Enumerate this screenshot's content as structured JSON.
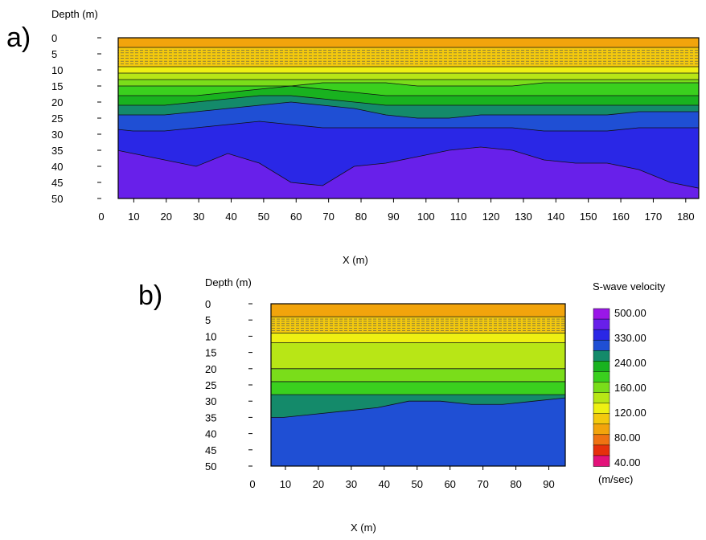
{
  "figure": {
    "panel_a_label": "a)",
    "panel_b_label": "b)"
  },
  "colorbar": {
    "title": "S-wave velocity",
    "unit": "(m/sec)",
    "labels": [
      "500.00",
      "330.00",
      "240.00",
      "160.00",
      "120.00",
      "80.00",
      "40.00"
    ],
    "colors": [
      "#9a17e8",
      "#6820ea",
      "#2a27e6",
      "#1f4fd4",
      "#148a6a",
      "#19b21f",
      "#3ad01e",
      "#7add1a",
      "#b8e616",
      "#eef013",
      "#f3c90e",
      "#f2a40c",
      "#ef7212",
      "#e6300c",
      "#e3127a"
    ]
  },
  "chart_data": [
    {
      "type": "heatmap",
      "panel": "a)",
      "xlabel": "X (m)",
      "ylabel": "Depth (m)",
      "xlim": [
        0,
        185
      ],
      "ylim": [
        0,
        50
      ],
      "x_ticks": [
        "0",
        "10",
        "20",
        "30",
        "40",
        "50",
        "60",
        "70",
        "80",
        "90",
        "100",
        "110",
        "120",
        "130",
        "140",
        "150",
        "160",
        "170",
        "180"
      ],
      "y_ticks": [
        "0",
        "5",
        "10",
        "15",
        "20",
        "25",
        "30",
        "35",
        "40",
        "45",
        "50"
      ],
      "layers": [
        {
          "color": "#f2a40c",
          "velocity": 100,
          "top": [
            0,
            0,
            0,
            0,
            0,
            0,
            0,
            0,
            0,
            0,
            0,
            0,
            0,
            0,
            0,
            0,
            0,
            0,
            0,
            0
          ],
          "bottom": [
            3,
            3,
            3,
            3,
            3,
            3,
            3,
            3,
            3,
            3,
            3,
            3,
            3,
            3,
            3,
            3,
            3,
            3,
            3,
            3
          ]
        },
        {
          "color": "#f3c90e",
          "velocity": 130,
          "top": [
            3,
            3,
            3,
            3,
            3,
            3,
            3,
            3,
            3,
            3,
            3,
            3,
            3,
            3,
            3,
            3,
            3,
            3,
            3,
            3
          ],
          "bottom": [
            9,
            9,
            9,
            9,
            9,
            9,
            9,
            9,
            9,
            9,
            9,
            9,
            9,
            9,
            9,
            9,
            9,
            9,
            9,
            9
          ]
        },
        {
          "color": "#eef013",
          "velocity": 145,
          "top": [
            9,
            9,
            9,
            9,
            9,
            9,
            9,
            9,
            9,
            9,
            9,
            9,
            9,
            9,
            9,
            9,
            9,
            9,
            9,
            9
          ],
          "bottom": [
            11,
            11,
            11,
            11,
            11,
            11,
            11,
            11,
            11,
            11,
            11,
            11,
            11,
            11,
            11,
            11,
            11,
            11,
            11,
            11
          ]
        },
        {
          "color": "#b8e616",
          "velocity": 160,
          "top": [
            11,
            11,
            11,
            11,
            11,
            11,
            11,
            11,
            11,
            11,
            11,
            11,
            11,
            11,
            11,
            11,
            11,
            11,
            11,
            11
          ],
          "bottom": [
            13,
            13,
            13,
            13,
            13,
            13,
            13,
            13,
            13,
            13,
            13,
            13,
            13,
            13,
            13,
            13,
            13,
            13,
            13,
            13
          ]
        },
        {
          "color": "#7add1a",
          "velocity": 180,
          "top": [
            13,
            13,
            13,
            13,
            13,
            13,
            13,
            13,
            13,
            13,
            13,
            13,
            13,
            13,
            13,
            13,
            13,
            13,
            13,
            13
          ],
          "bottom": [
            15,
            15,
            15,
            15,
            15,
            15,
            15,
            14,
            14,
            14,
            15,
            15,
            15,
            15,
            14,
            14,
            14,
            14,
            14,
            14
          ]
        },
        {
          "color": "#3ad01e",
          "velocity": 200,
          "top": [
            15,
            15,
            15,
            15,
            15,
            15,
            15,
            14,
            14,
            14,
            15,
            15,
            15,
            15,
            14,
            14,
            14,
            14,
            14,
            14
          ],
          "bottom": [
            18,
            18,
            18,
            18,
            17,
            16,
            15,
            16,
            17,
            18,
            18,
            18,
            18,
            18,
            18,
            18,
            18,
            18,
            18,
            18
          ]
        },
        {
          "color": "#19b21f",
          "velocity": 220,
          "top": [
            18,
            18,
            18,
            18,
            17,
            16,
            15,
            16,
            17,
            18,
            18,
            18,
            18,
            18,
            18,
            18,
            18,
            18,
            18,
            18
          ],
          "bottom": [
            21,
            21,
            21,
            20,
            19,
            18,
            18,
            19,
            20,
            21,
            21,
            21,
            21,
            21,
            21,
            21,
            21,
            21,
            21,
            21
          ]
        },
        {
          "color": "#148a6a",
          "velocity": 240,
          "top": [
            21,
            21,
            21,
            20,
            19,
            18,
            18,
            19,
            20,
            21,
            21,
            21,
            21,
            21,
            21,
            21,
            21,
            21,
            21,
            21
          ],
          "bottom": [
            24,
            24,
            24,
            23,
            22,
            21,
            20,
            21,
            22,
            24,
            25,
            25,
            24,
            24,
            24,
            24,
            24,
            23,
            23,
            23
          ]
        },
        {
          "color": "#1f4fd4",
          "velocity": 280,
          "top": [
            24,
            24,
            24,
            23,
            22,
            21,
            20,
            21,
            22,
            24,
            25,
            25,
            24,
            24,
            24,
            24,
            24,
            23,
            23,
            23
          ],
          "bottom": [
            28,
            29,
            29,
            28,
            27,
            26,
            27,
            28,
            28,
            28,
            28,
            28,
            28,
            28,
            29,
            29,
            29,
            28,
            28,
            28
          ]
        },
        {
          "color": "#2a27e6",
          "velocity": 330,
          "top": [
            28,
            29,
            29,
            28,
            27,
            26,
            27,
            28,
            28,
            28,
            28,
            28,
            28,
            28,
            29,
            29,
            29,
            28,
            28,
            28
          ],
          "bottom": [
            34,
            36,
            38,
            40,
            36,
            39,
            45,
            46,
            40,
            39,
            37,
            35,
            34,
            35,
            38,
            39,
            39,
            41,
            45,
            47
          ]
        },
        {
          "color": "#6820ea",
          "velocity": 400,
          "top": [
            34,
            36,
            38,
            40,
            36,
            39,
            45,
            46,
            40,
            39,
            37,
            35,
            34,
            35,
            38,
            39,
            39,
            41,
            45,
            47
          ],
          "bottom": [
            50,
            50,
            50,
            50,
            50,
            50,
            50,
            50,
            50,
            50,
            50,
            50,
            50,
            50,
            50,
            50,
            50,
            50,
            50,
            50
          ]
        }
      ]
    },
    {
      "type": "heatmap",
      "panel": "b)",
      "xlabel": "X (m)",
      "ylabel": "Depth (m)",
      "xlim": [
        0,
        95
      ],
      "ylim": [
        0,
        50
      ],
      "x_ticks": [
        "0",
        "10",
        "20",
        "30",
        "40",
        "50",
        "60",
        "70",
        "80",
        "90"
      ],
      "y_ticks": [
        "0",
        "5",
        "10",
        "15",
        "20",
        "25",
        "30",
        "35",
        "40",
        "45",
        "50"
      ],
      "layers": [
        {
          "color": "#f2a40c",
          "velocity": 100,
          "top": [
            0,
            0,
            0,
            0,
            0,
            0,
            0,
            0,
            0,
            0,
            0
          ],
          "bottom": [
            4,
            4,
            4,
            4,
            4,
            4,
            4,
            4,
            4,
            4,
            4
          ]
        },
        {
          "color": "#f3c90e",
          "velocity": 130,
          "top": [
            4,
            4,
            4,
            4,
            4,
            4,
            4,
            4,
            4,
            4,
            4
          ],
          "bottom": [
            9,
            9,
            9,
            9,
            9,
            9,
            9,
            9,
            9,
            9,
            9
          ]
        },
        {
          "color": "#eef013",
          "velocity": 145,
          "top": [
            9,
            9,
            9,
            9,
            9,
            9,
            9,
            9,
            9,
            9,
            9
          ],
          "bottom": [
            12,
            12,
            12,
            12,
            12,
            12,
            12,
            12,
            12,
            12,
            12
          ]
        },
        {
          "color": "#b8e616",
          "velocity": 160,
          "top": [
            12,
            12,
            12,
            12,
            12,
            12,
            12,
            12,
            12,
            12,
            12
          ],
          "bottom": [
            20,
            20,
            20,
            20,
            20,
            20,
            20,
            20,
            20,
            20,
            20
          ]
        },
        {
          "color": "#7add1a",
          "velocity": 180,
          "top": [
            20,
            20,
            20,
            20,
            20,
            20,
            20,
            20,
            20,
            20,
            20
          ],
          "bottom": [
            24,
            24,
            24,
            24,
            24,
            24,
            24,
            24,
            24,
            24,
            24
          ]
        },
        {
          "color": "#3ad01e",
          "velocity": 200,
          "top": [
            24,
            24,
            24,
            24,
            24,
            24,
            24,
            24,
            24,
            24,
            24
          ],
          "bottom": [
            28,
            28,
            28,
            28,
            28,
            28,
            28,
            28,
            28,
            28,
            28
          ]
        },
        {
          "color": "#148a6a",
          "velocity": 240,
          "top": [
            28,
            28,
            28,
            28,
            28,
            28,
            28,
            28,
            28,
            28,
            28
          ],
          "bottom": [
            35,
            35,
            34,
            33,
            32,
            30,
            30,
            31,
            31,
            30,
            29
          ]
        },
        {
          "color": "#1f4fd4",
          "velocity": 280,
          "top": [
            35,
            35,
            34,
            33,
            32,
            30,
            30,
            31,
            31,
            30,
            29
          ],
          "bottom": [
            50,
            50,
            50,
            50,
            50,
            50,
            50,
            50,
            50,
            50,
            50
          ]
        }
      ]
    }
  ]
}
